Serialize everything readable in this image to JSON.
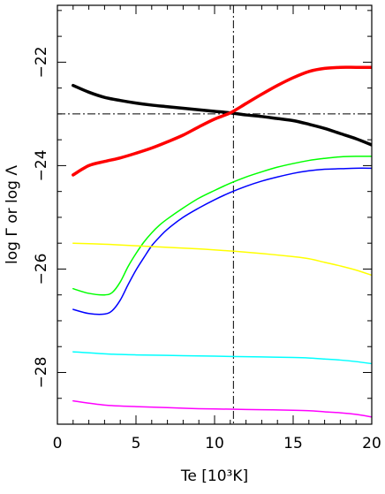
{
  "chart_data": {
    "type": "line",
    "xlabel": "Te [10³K]",
    "ylabel": "log Γ or log Λ",
    "xlim": [
      0,
      20
    ],
    "ylim": [
      -29,
      -20.9
    ],
    "xticks": [
      0,
      5,
      10,
      15,
      20
    ],
    "xtick_labels": [
      "0",
      "5",
      "10",
      "15",
      "20"
    ],
    "yticks": [
      -22,
      -24,
      -26,
      -28
    ],
    "ytick_labels": [
      "−22",
      "−24",
      "−26",
      "−28"
    ],
    "grid": false,
    "reference_lines": {
      "vertical_x": 11.2,
      "horizontal_y": -23
    },
    "series": [
      {
        "color": "#000000",
        "stroke_width": 3.5,
        "x": [
          1,
          2,
          3,
          4,
          5,
          6,
          7,
          8,
          9,
          10,
          11,
          12,
          13,
          14,
          15,
          16,
          17,
          18,
          19,
          20
        ],
        "y": [
          -22.45,
          -22.58,
          -22.68,
          -22.74,
          -22.79,
          -22.83,
          -22.86,
          -22.89,
          -22.92,
          -22.95,
          -22.98,
          -23.02,
          -23.05,
          -23.09,
          -23.13,
          -23.2,
          -23.28,
          -23.38,
          -23.48,
          -23.6
        ]
      },
      {
        "color": "#ff0000",
        "stroke_width": 3.5,
        "x": [
          1,
          2,
          3,
          4,
          5,
          6,
          7,
          8,
          9,
          10,
          11,
          12,
          13,
          14,
          15,
          16,
          17,
          18,
          19,
          20
        ],
        "y": [
          -24.18,
          -24.0,
          -23.92,
          -23.85,
          -23.76,
          -23.66,
          -23.54,
          -23.41,
          -23.25,
          -23.1,
          -22.98,
          -22.8,
          -22.62,
          -22.45,
          -22.3,
          -22.18,
          -22.12,
          -22.1,
          -22.1,
          -22.1
        ]
      },
      {
        "color": "#00ff00",
        "stroke_width": 1.5,
        "x": [
          1,
          2,
          3,
          3.5,
          4,
          4.5,
          5,
          5.5,
          6,
          6.5,
          7,
          8,
          9,
          10,
          11,
          12,
          13,
          14,
          15,
          16,
          17,
          18,
          19,
          20
        ],
        "y": [
          -26.38,
          -26.47,
          -26.5,
          -26.45,
          -26.25,
          -25.95,
          -25.7,
          -25.48,
          -25.3,
          -25.15,
          -25.03,
          -24.82,
          -24.63,
          -24.48,
          -24.34,
          -24.22,
          -24.12,
          -24.03,
          -23.96,
          -23.9,
          -23.86,
          -23.83,
          -23.82,
          -23.82
        ]
      },
      {
        "color": "#0000ff",
        "stroke_width": 1.5,
        "x": [
          1,
          2,
          3,
          3.5,
          4,
          4.5,
          5,
          5.5,
          6,
          6.5,
          7,
          8,
          9,
          10,
          11,
          12,
          13,
          14,
          15,
          16,
          17,
          18,
          19,
          20
        ],
        "y": [
          -26.78,
          -26.86,
          -26.87,
          -26.8,
          -26.6,
          -26.3,
          -26.02,
          -25.78,
          -25.55,
          -25.38,
          -25.23,
          -25.0,
          -24.82,
          -24.66,
          -24.52,
          -24.4,
          -24.3,
          -24.22,
          -24.15,
          -24.1,
          -24.07,
          -24.06,
          -24.05,
          -24.05
        ]
      },
      {
        "color": "#ffff00",
        "stroke_width": 1.5,
        "x": [
          1,
          3,
          5,
          7,
          9,
          11,
          13,
          15,
          16,
          17,
          18,
          19,
          20
        ],
        "y": [
          -25.5,
          -25.52,
          -25.55,
          -25.58,
          -25.61,
          -25.65,
          -25.7,
          -25.76,
          -25.8,
          -25.87,
          -25.94,
          -26.02,
          -26.12
        ]
      },
      {
        "color": "#00ffff",
        "stroke_width": 1.5,
        "x": [
          1,
          3,
          5,
          7,
          9,
          11,
          13,
          15,
          16,
          17,
          18,
          19,
          20
        ],
        "y": [
          -27.6,
          -27.64,
          -27.66,
          -27.67,
          -27.68,
          -27.69,
          -27.7,
          -27.71,
          -27.72,
          -27.74,
          -27.76,
          -27.79,
          -27.83
        ]
      },
      {
        "color": "#ff00ff",
        "stroke_width": 1.5,
        "x": [
          1,
          3,
          5,
          7,
          9,
          11,
          13,
          15,
          16,
          17,
          18,
          19,
          20
        ],
        "y": [
          -28.55,
          -28.63,
          -28.66,
          -28.68,
          -28.7,
          -28.71,
          -28.72,
          -28.73,
          -28.74,
          -28.76,
          -28.78,
          -28.81,
          -28.86
        ]
      }
    ]
  }
}
